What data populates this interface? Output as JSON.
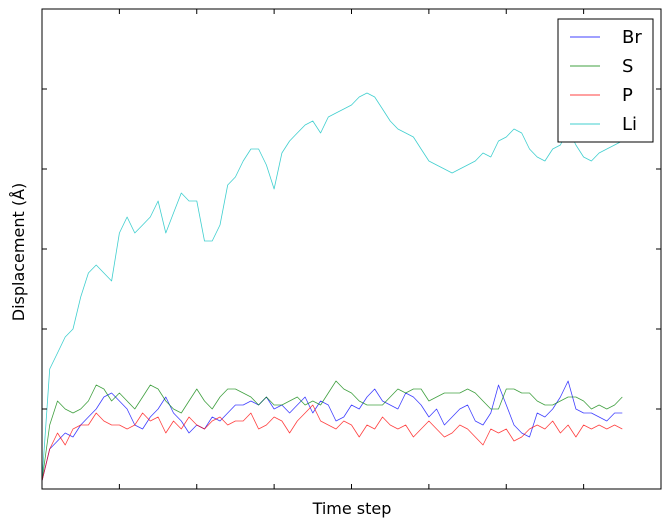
{
  "chart_data": {
    "type": "line",
    "title": "",
    "xlabel": "Time step",
    "ylabel": "Displacement (Å)",
    "xlim": [
      0,
      1600
    ],
    "ylim": [
      0,
      6
    ],
    "x_tick_labels_shown": false,
    "y_tick_labels_shown": false,
    "grid": false,
    "legend_position": "top-right",
    "series": [
      {
        "name": "Br",
        "color": "#0000ff",
        "x": [
          0,
          20,
          40,
          60,
          80,
          100,
          120,
          140,
          160,
          180,
          200,
          220,
          240,
          260,
          280,
          300,
          320,
          340,
          360,
          380,
          400,
          420,
          440,
          460,
          480,
          500,
          520,
          540,
          560,
          580,
          600,
          620,
          640,
          660,
          680,
          700,
          720,
          740,
          760,
          780,
          800,
          820,
          840,
          860,
          880,
          900,
          920,
          940,
          960,
          980,
          1000,
          1020,
          1040,
          1060,
          1080,
          1100,
          1120,
          1140,
          1160,
          1180,
          1200,
          1220,
          1240,
          1260,
          1280,
          1300,
          1320,
          1340,
          1360,
          1380,
          1400,
          1420,
          1440,
          1460,
          1480,
          1500
        ],
        "values": [
          0.1,
          0.5,
          0.6,
          0.7,
          0.65,
          0.8,
          0.9,
          1.0,
          1.15,
          1.2,
          1.1,
          1.0,
          0.8,
          0.75,
          0.9,
          1.0,
          1.15,
          0.95,
          0.85,
          0.7,
          0.8,
          0.75,
          0.9,
          0.85,
          0.95,
          1.05,
          1.05,
          1.1,
          1.05,
          1.15,
          1.0,
          1.05,
          0.95,
          1.05,
          1.15,
          0.95,
          1.1,
          1.05,
          0.85,
          0.9,
          1.05,
          1.0,
          1.15,
          1.25,
          1.1,
          1.05,
          1.0,
          1.2,
          1.15,
          1.05,
          0.9,
          1.0,
          0.8,
          0.9,
          1.0,
          1.05,
          0.85,
          0.8,
          0.95,
          1.3,
          1.05,
          0.8,
          0.7,
          0.65,
          0.95,
          0.9,
          1.0,
          1.15,
          1.35,
          1.0,
          0.95,
          0.95,
          0.9,
          0.85,
          0.95,
          0.95
        ]
      },
      {
        "name": "S",
        "color": "#008000",
        "x": [
          0,
          20,
          40,
          60,
          80,
          100,
          120,
          140,
          160,
          180,
          200,
          220,
          240,
          260,
          280,
          300,
          320,
          340,
          360,
          380,
          400,
          420,
          440,
          460,
          480,
          500,
          520,
          540,
          560,
          580,
          600,
          620,
          640,
          660,
          680,
          700,
          720,
          740,
          760,
          780,
          800,
          820,
          840,
          860,
          880,
          900,
          920,
          940,
          960,
          980,
          1000,
          1020,
          1040,
          1060,
          1080,
          1100,
          1120,
          1140,
          1160,
          1180,
          1200,
          1220,
          1240,
          1260,
          1280,
          1300,
          1320,
          1340,
          1360,
          1380,
          1400,
          1420,
          1440,
          1460,
          1480,
          1500
        ],
        "values": [
          0.1,
          0.8,
          1.1,
          1.0,
          0.95,
          1.0,
          1.1,
          1.3,
          1.25,
          1.1,
          1.2,
          1.1,
          1.0,
          1.15,
          1.3,
          1.25,
          1.1,
          1.0,
          0.95,
          1.1,
          1.25,
          1.1,
          1.0,
          1.15,
          1.25,
          1.25,
          1.2,
          1.15,
          1.05,
          1.15,
          1.05,
          1.05,
          1.1,
          1.15,
          1.05,
          1.1,
          1.05,
          1.2,
          1.35,
          1.25,
          1.2,
          1.1,
          1.05,
          1.05,
          1.05,
          1.15,
          1.25,
          1.2,
          1.25,
          1.25,
          1.1,
          1.15,
          1.2,
          1.2,
          1.2,
          1.25,
          1.2,
          1.1,
          1.0,
          1.0,
          1.25,
          1.25,
          1.2,
          1.2,
          1.1,
          1.05,
          1.05,
          1.1,
          1.15,
          1.15,
          1.1,
          1.0,
          1.05,
          1.0,
          1.05,
          1.15
        ]
      },
      {
        "name": "P",
        "color": "#ff0000",
        "x": [
          0,
          20,
          40,
          60,
          80,
          100,
          120,
          140,
          160,
          180,
          200,
          220,
          240,
          260,
          280,
          300,
          320,
          340,
          360,
          380,
          400,
          420,
          440,
          460,
          480,
          500,
          520,
          540,
          560,
          580,
          600,
          620,
          640,
          660,
          680,
          700,
          720,
          740,
          760,
          780,
          800,
          820,
          840,
          860,
          880,
          900,
          920,
          940,
          960,
          980,
          1000,
          1020,
          1040,
          1060,
          1080,
          1100,
          1120,
          1140,
          1160,
          1180,
          1200,
          1220,
          1240,
          1260,
          1280,
          1300,
          1320,
          1340,
          1360,
          1380,
          1400,
          1420,
          1440,
          1460,
          1480,
          1500
        ],
        "values": [
          0.1,
          0.5,
          0.7,
          0.55,
          0.75,
          0.8,
          0.8,
          0.95,
          0.85,
          0.8,
          0.8,
          0.75,
          0.8,
          0.95,
          0.85,
          0.9,
          0.7,
          0.85,
          0.75,
          0.9,
          0.8,
          0.75,
          0.85,
          0.9,
          0.8,
          0.85,
          0.85,
          0.95,
          0.75,
          0.8,
          0.9,
          0.85,
          0.7,
          0.85,
          0.95,
          1.05,
          0.85,
          0.8,
          0.75,
          0.85,
          0.8,
          0.65,
          0.8,
          0.75,
          0.9,
          0.8,
          0.75,
          0.8,
          0.65,
          0.75,
          0.85,
          0.75,
          0.65,
          0.7,
          0.8,
          0.75,
          0.65,
          0.55,
          0.75,
          0.7,
          0.75,
          0.6,
          0.65,
          0.75,
          0.8,
          0.75,
          0.85,
          0.7,
          0.8,
          0.65,
          0.8,
          0.75,
          0.8,
          0.75,
          0.8,
          0.75
        ]
      },
      {
        "name": "Li",
        "color": "#00bfbf",
        "x": [
          0,
          20,
          40,
          60,
          80,
          100,
          120,
          140,
          160,
          180,
          200,
          220,
          240,
          260,
          280,
          300,
          320,
          340,
          360,
          380,
          400,
          420,
          440,
          460,
          480,
          500,
          520,
          540,
          560,
          580,
          600,
          620,
          640,
          660,
          680,
          700,
          720,
          740,
          760,
          780,
          800,
          820,
          840,
          860,
          880,
          900,
          920,
          940,
          960,
          980,
          1000,
          1020,
          1040,
          1060,
          1080,
          1100,
          1120,
          1140,
          1160,
          1180,
          1200,
          1220,
          1240,
          1260,
          1280,
          1300,
          1320,
          1340,
          1360,
          1380,
          1400,
          1420,
          1440,
          1460,
          1480,
          1500
        ],
        "values": [
          0.1,
          1.5,
          1.7,
          1.9,
          2.0,
          2.4,
          2.7,
          2.8,
          2.7,
          2.6,
          3.2,
          3.4,
          3.2,
          3.3,
          3.4,
          3.6,
          3.2,
          3.45,
          3.7,
          3.6,
          3.6,
          3.1,
          3.1,
          3.3,
          3.8,
          3.9,
          4.1,
          4.25,
          4.25,
          4.05,
          3.75,
          4.2,
          4.35,
          4.45,
          4.55,
          4.6,
          4.45,
          4.65,
          4.7,
          4.75,
          4.8,
          4.9,
          4.95,
          4.9,
          4.75,
          4.6,
          4.5,
          4.45,
          4.4,
          4.25,
          4.1,
          4.05,
          4.0,
          3.95,
          4.0,
          4.05,
          4.1,
          4.2,
          4.15,
          4.35,
          4.4,
          4.5,
          4.45,
          4.25,
          4.15,
          4.1,
          4.25,
          4.3,
          4.5,
          4.3,
          4.15,
          4.1,
          4.2,
          4.25,
          4.3,
          4.35
        ]
      }
    ]
  }
}
